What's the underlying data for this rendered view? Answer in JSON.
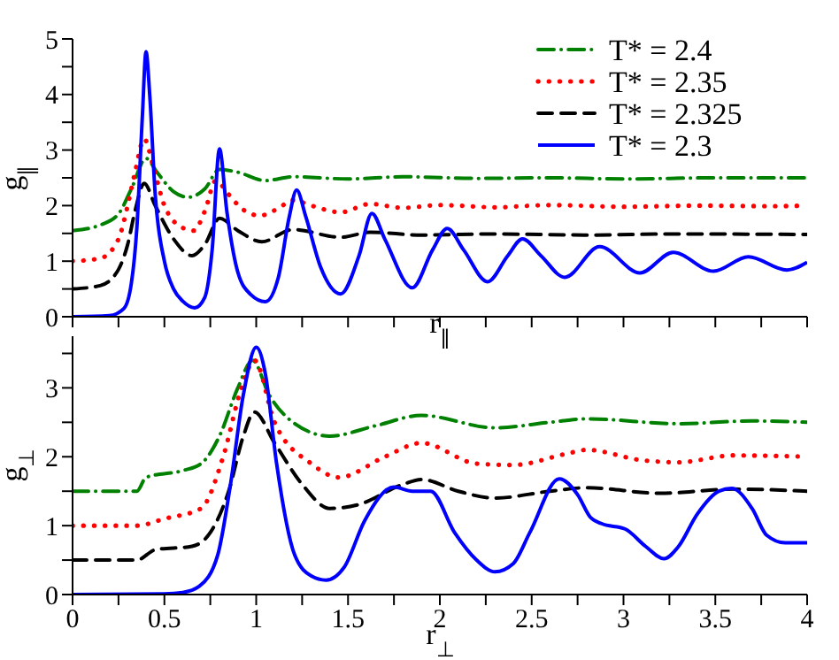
{
  "chart_data": [
    {
      "type": "line",
      "ylabel": "g$_{∥}$",
      "xlabel": "r$_{∥}$",
      "xlim": [
        0,
        4
      ],
      "xticks": [
        0,
        {
          "value": 0.25,
          "label": null
        },
        0.5,
        {
          "value": 0.75,
          "label": null
        },
        1,
        {
          "value": 1.25,
          "label": null
        },
        1.5,
        {
          "value": 1.75,
          "label": null
        },
        2,
        {
          "value": 2.25,
          "label": null
        },
        2.5,
        {
          "value": 2.75,
          "label": null
        },
        3,
        {
          "value": 3.25,
          "label": null
        },
        3.5,
        {
          "value": 3.75,
          "label": null
        },
        4
      ],
      "ylim": [
        0,
        5
      ],
      "yticks": [
        0,
        {
          "value": 0.5,
          "label": null
        },
        1,
        {
          "value": 1.5,
          "label": null
        },
        2,
        {
          "value": 2.5,
          "label": null
        },
        3,
        {
          "value": 3.5,
          "label": null
        },
        4,
        {
          "value": 4.5,
          "label": null
        },
        5
      ],
      "tick_labels": "y",
      "legend": "top right",
      "marker": "none",
      "series": [
        {
          "name": "T* = 2.4",
          "color": "#008000",
          "line_style": "dashdot",
          "x": [
            0,
            0.15,
            0.25,
            0.32,
            0.4,
            0.46,
            0.55,
            0.63,
            0.72,
            0.8,
            0.9,
            1.05,
            1.2,
            1.5,
            1.8,
            2.2,
            2.6,
            3.0,
            3.5,
            4
          ],
          "values": [
            1.55,
            1.65,
            1.85,
            2.3,
            2.85,
            2.6,
            2.25,
            2.15,
            2.3,
            2.65,
            2.6,
            2.45,
            2.52,
            2.48,
            2.52,
            2.49,
            2.5,
            2.48,
            2.5,
            2.5
          ]
        },
        {
          "name": "T* = 2.35",
          "color": "#ff0000",
          "line_style": "dotted",
          "x": [
            0,
            0.15,
            0.25,
            0.3,
            0.34,
            0.39,
            0.44,
            0.5,
            0.6,
            0.66,
            0.72,
            0.78,
            0.85,
            0.92,
            1.02,
            1.12,
            1.2,
            1.3,
            1.46,
            1.62,
            1.8,
            2.0,
            2.3,
            2.6,
            3.0,
            3.4,
            3.8,
            4
          ],
          "values": [
            1.0,
            1.05,
            1.4,
            2.0,
            2.6,
            3.2,
            2.7,
            2.0,
            1.6,
            1.55,
            1.9,
            2.45,
            2.2,
            1.95,
            1.82,
            1.95,
            2.1,
            2.0,
            1.88,
            2.03,
            1.96,
            2.01,
            1.97,
            2.01,
            1.98,
            2.0,
            1.99,
            2.0
          ]
        },
        {
          "name": "T* = 2.325",
          "color": "#000000",
          "line_style": "dashed",
          "x": [
            0,
            0.15,
            0.25,
            0.3,
            0.34,
            0.39,
            0.45,
            0.55,
            0.65,
            0.72,
            0.8,
            0.9,
            1.03,
            1.2,
            1.46,
            1.62,
            1.9,
            2.3,
            2.8,
            3.3,
            4
          ],
          "values": [
            0.5,
            0.56,
            0.85,
            1.3,
            1.9,
            2.4,
            2.0,
            1.4,
            1.1,
            1.3,
            1.77,
            1.55,
            1.35,
            1.57,
            1.43,
            1.52,
            1.47,
            1.49,
            1.47,
            1.49,
            1.48
          ]
        },
        {
          "name": "T* = 2.3",
          "color": "#0000ff",
          "line_style": "solid",
          "x": [
            0,
            0.2,
            0.28,
            0.32,
            0.35,
            0.38,
            0.4,
            0.42,
            0.45,
            0.5,
            0.55,
            0.6,
            0.665,
            0.72,
            0.76,
            0.8,
            0.84,
            0.9,
            0.97,
            1.05,
            1.12,
            1.18,
            1.22,
            1.27,
            1.35,
            1.46,
            1.56,
            1.63,
            1.7,
            1.85,
            1.96,
            2.04,
            2.13,
            2.26,
            2.37,
            2.45,
            2.55,
            2.68,
            2.87,
            3.09,
            3.27,
            3.49,
            3.68,
            3.89,
            4
          ],
          "values": [
            0,
            0.02,
            0.15,
            0.6,
            1.6,
            3.6,
            4.77,
            4.0,
            2.2,
            1.0,
            0.5,
            0.28,
            0.16,
            0.35,
            1.2,
            3.02,
            1.9,
            0.8,
            0.4,
            0.27,
            0.7,
            1.8,
            2.28,
            1.8,
            0.9,
            0.41,
            1.1,
            1.86,
            1.4,
            0.52,
            1.2,
            1.59,
            1.2,
            0.63,
            1.1,
            1.4,
            1.1,
            0.71,
            1.26,
            0.79,
            1.16,
            0.82,
            1.08,
            0.84,
            0.98
          ]
        }
      ]
    },
    {
      "type": "line",
      "ylabel": "g$_{⊥}$",
      "xlabel": "r$_{⊥}$",
      "xlim": [
        0,
        4
      ],
      "xticks": [
        0,
        {
          "value": 0.25,
          "label": null
        },
        0.5,
        {
          "value": 0.75,
          "label": null
        },
        1,
        {
          "value": 1.25,
          "label": null
        },
        1.5,
        {
          "value": 1.75,
          "label": null
        },
        2,
        {
          "value": 2.25,
          "label": null
        },
        2.5,
        {
          "value": 2.75,
          "label": null
        },
        3,
        {
          "value": 3.25,
          "label": null
        },
        3.5,
        {
          "value": 3.75,
          "label": null
        },
        4
      ],
      "ylim": [
        0,
        3.75
      ],
      "yticks": [
        0,
        {
          "value": 0.5,
          "label": null
        },
        1,
        {
          "value": 1.5,
          "label": null
        },
        2,
        {
          "value": 2.5,
          "label": null
        },
        3,
        {
          "value": 3.5,
          "label": null
        }
      ],
      "marker": "none",
      "series": [
        {
          "color": "#008000",
          "line_style": "dashdot",
          "x": [
            0,
            0.35,
            0.4,
            0.6,
            0.7,
            0.8,
            0.9,
            0.98,
            1.07,
            1.2,
            1.4,
            1.65,
            1.9,
            2.3,
            2.6,
            2.8,
            3.3,
            3.7,
            4
          ],
          "values": [
            1.5,
            1.5,
            1.7,
            1.8,
            1.9,
            2.3,
            3.0,
            3.4,
            2.9,
            2.5,
            2.3,
            2.45,
            2.6,
            2.42,
            2.5,
            2.55,
            2.48,
            2.52,
            2.5
          ]
        },
        {
          "color": "#ff0000",
          "line_style": "dotted",
          "x": [
            0,
            0.35,
            0.5,
            0.7,
            0.82,
            0.92,
            0.99,
            1.1,
            1.3,
            1.45,
            1.7,
            1.9,
            2.2,
            2.4,
            2.7,
            2.8,
            3.1,
            3.3,
            3.6,
            4
          ],
          "values": [
            1.0,
            1.0,
            1.1,
            1.25,
            2.0,
            3.0,
            3.4,
            2.5,
            1.9,
            1.7,
            2.0,
            2.2,
            1.9,
            1.88,
            2.05,
            2.1,
            1.95,
            1.92,
            2.02,
            2.0
          ]
        },
        {
          "color": "#000000",
          "line_style": "dashed",
          "x": [
            0,
            0.35,
            0.45,
            0.65,
            0.75,
            0.85,
            0.93,
            0.99,
            1.1,
            1.25,
            1.4,
            1.55,
            1.8,
            1.9,
            2.1,
            2.3,
            2.6,
            2.8,
            3.2,
            3.6,
            4
          ],
          "values": [
            0.5,
            0.5,
            0.65,
            0.7,
            0.9,
            1.5,
            2.3,
            2.65,
            2.2,
            1.6,
            1.25,
            1.3,
            1.6,
            1.67,
            1.5,
            1.4,
            1.5,
            1.55,
            1.47,
            1.53,
            1.5
          ]
        },
        {
          "color": "#0000ff",
          "line_style": "solid",
          "x": [
            0,
            0.5,
            0.6,
            0.69,
            0.79,
            0.86,
            0.93,
            1.0,
            1.05,
            1.11,
            1.21,
            1.3,
            1.38,
            1.48,
            1.59,
            1.75,
            1.85,
            1.95,
            2.08,
            2.2,
            2.3,
            2.4,
            2.49,
            2.65,
            2.75,
            2.82,
            2.88,
            3.01,
            3.12,
            3.22,
            3.3,
            3.4,
            3.52,
            3.59,
            3.7,
            3.78,
            3.88,
            4
          ],
          "values": [
            0,
            0.01,
            0.03,
            0.12,
            0.57,
            1.6,
            2.9,
            3.59,
            3.2,
            1.92,
            0.57,
            0.27,
            0.21,
            0.4,
            1.07,
            1.56,
            1.5,
            1.5,
            0.9,
            0.5,
            0.33,
            0.45,
            0.9,
            1.68,
            1.45,
            1.12,
            1.03,
            0.95,
            0.7,
            0.52,
            0.7,
            1.16,
            1.5,
            1.54,
            1.25,
            0.86,
            0.75,
            0.75
          ]
        }
      ]
    }
  ]
}
